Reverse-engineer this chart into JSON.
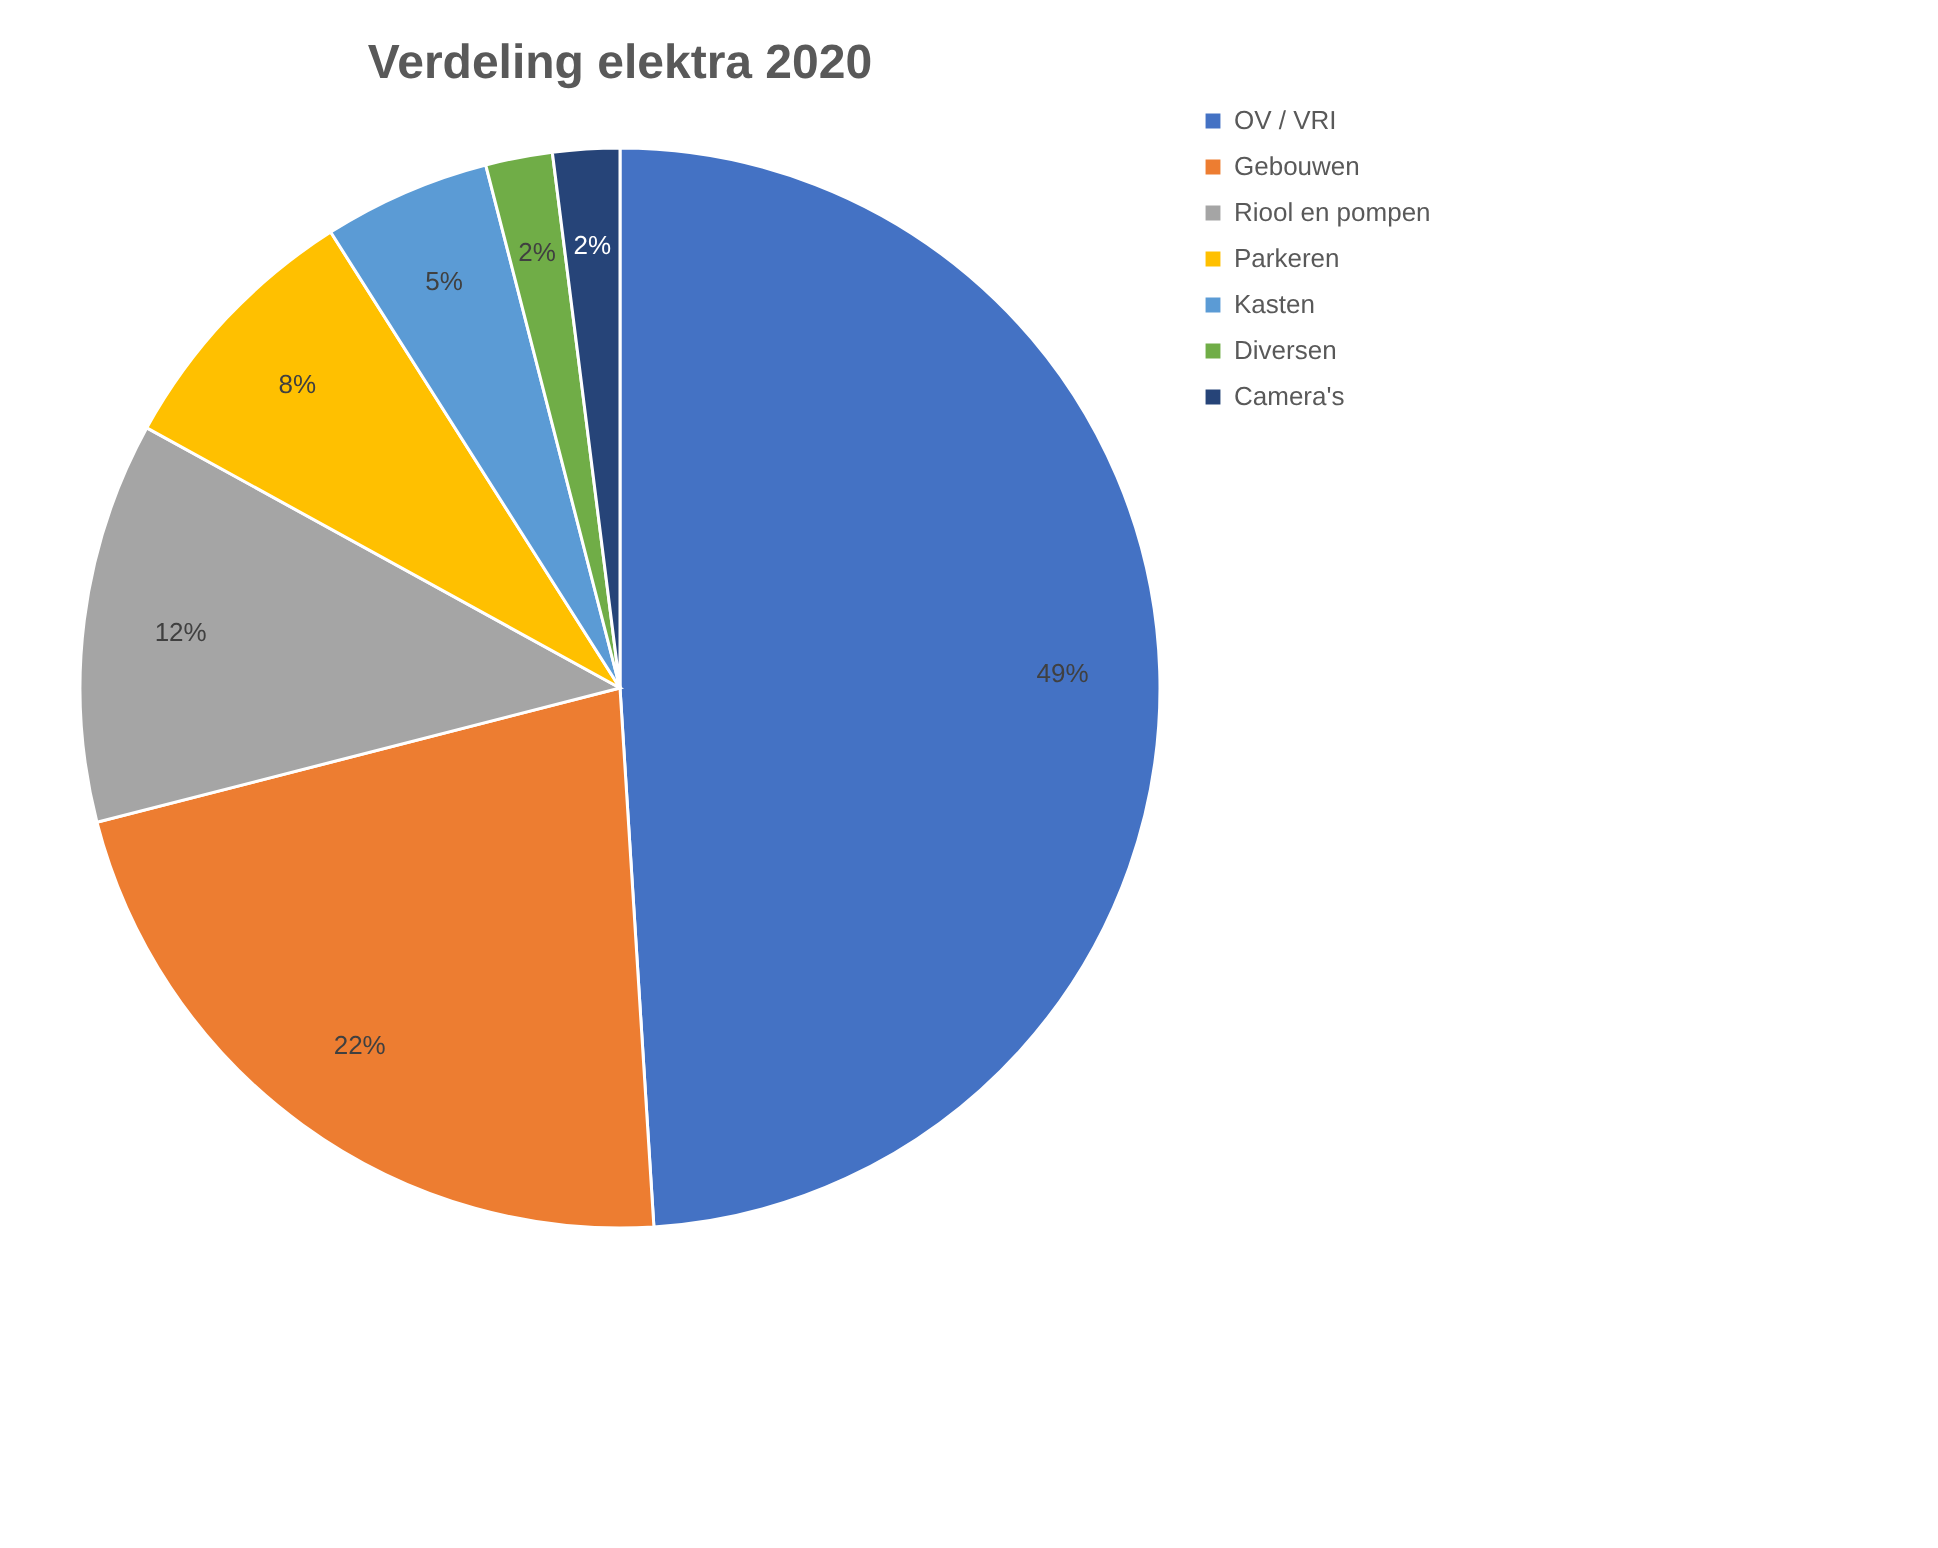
{
  "chart_data": {
    "type": "pie",
    "title": "Verdeling elektra 2020",
    "categories": [
      "OV / VRI",
      "Gebouwen",
      "Riool en pompen",
      "Parkeren",
      "Kasten",
      "Diversen",
      "Camera's"
    ],
    "values": [
      49,
      22,
      12,
      8,
      5,
      2,
      2
    ],
    "value_labels": [
      "49%",
      "22%",
      "12%",
      "8%",
      "5%",
      "2%",
      "2%"
    ],
    "colors": [
      "#4472c4",
      "#ed7d31",
      "#a5a5a5",
      "#ffc000",
      "#5b9bd5",
      "#70ad47",
      "#264478"
    ],
    "legend": "top right"
  }
}
